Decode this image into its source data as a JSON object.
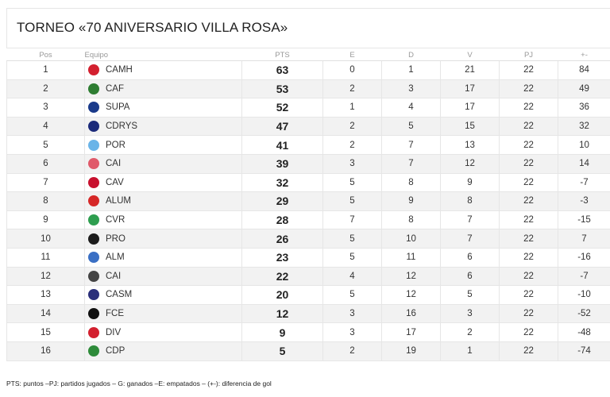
{
  "table": {
    "title": "TORNEO «70 ANIVERSARIO VILLA ROSA»",
    "columns": [
      "Pos",
      "Equipo",
      "PTS",
      "E",
      "D",
      "V",
      "PJ",
      "+-"
    ],
    "rows": [
      [
        1,
        "CAMH",
        63,
        0,
        1,
        21,
        22,
        84
      ],
      [
        2,
        "CAF",
        53,
        2,
        3,
        17,
        22,
        49
      ],
      [
        3,
        "SUPA",
        52,
        1,
        4,
        17,
        22,
        36
      ],
      [
        4,
        "CDRYS",
        47,
        2,
        5,
        15,
        22,
        32
      ],
      [
        5,
        "POR",
        41,
        2,
        7,
        13,
        22,
        10
      ],
      [
        6,
        "CAI",
        39,
        3,
        7,
        12,
        22,
        14
      ],
      [
        7,
        "CAV",
        32,
        5,
        8,
        9,
        22,
        -7
      ],
      [
        8,
        "ALUM",
        29,
        5,
        9,
        8,
        22,
        -3
      ],
      [
        9,
        "CVR",
        28,
        7,
        8,
        7,
        22,
        -15
      ],
      [
        10,
        "PRO",
        26,
        5,
        10,
        7,
        22,
        7
      ],
      [
        11,
        "ALM",
        23,
        5,
        11,
        6,
        22,
        -16
      ],
      [
        12,
        "CAI",
        22,
        4,
        12,
        6,
        22,
        -7
      ],
      [
        13,
        "CASM",
        20,
        5,
        12,
        5,
        22,
        -10
      ],
      [
        14,
        "FCE",
        12,
        3,
        16,
        3,
        22,
        -52
      ],
      [
        15,
        "DIV",
        9,
        3,
        17,
        2,
        22,
        -48
      ],
      [
        16,
        "CDP",
        5,
        2,
        19,
        1,
        22,
        -74
      ]
    ],
    "footnote": "PTS: puntos –PJ: partidos jugados – G: ganados –E: empatados – (+-): diferencia de gol"
  }
}
